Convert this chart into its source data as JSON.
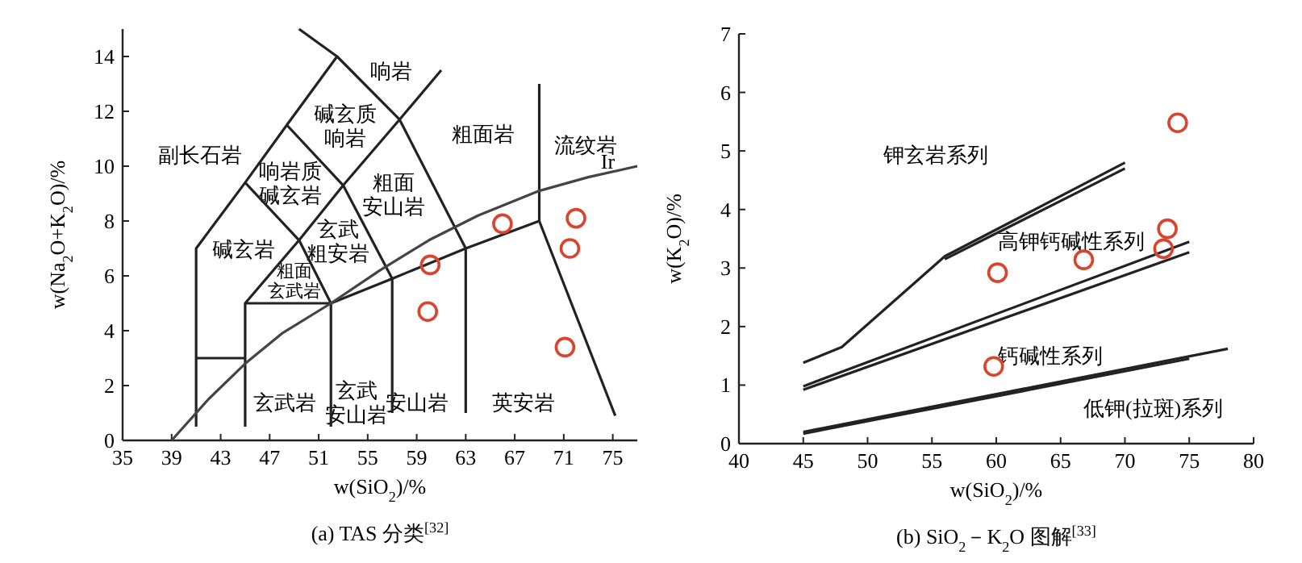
{
  "chart_data": [
    {
      "type": "scatter",
      "title": "(a) TAS 分类$^{[32]}$",
      "xlabel": "w(SiO$_{2}$)/%",
      "ylabel": "w(Na$_{2}$O+K$_{2}$O)/%",
      "xlim": [
        35,
        77
      ],
      "ylim": [
        0,
        15
      ],
      "xticks": [
        35,
        39,
        43,
        47,
        51,
        55,
        59,
        63,
        67,
        71,
        75
      ],
      "yticks": [
        0,
        2,
        4,
        6,
        8,
        10,
        12,
        14
      ],
      "grid": false,
      "series": [
        {
          "type": "line",
          "color": "#222222",
          "x": [
            41,
            41,
            45,
            48.4,
            52.5,
            49.4
          ],
          "values": [
            0.5,
            7,
            9.4,
            11.5,
            14,
            15
          ]
        },
        {
          "type": "line",
          "color": "#222222",
          "x": [
            41,
            45
          ],
          "values": [
            3,
            3
          ]
        },
        {
          "type": "line",
          "color": "#222222",
          "x": [
            45,
            45,
            52,
            52
          ],
          "values": [
            0.5,
            5,
            5,
            0.5
          ]
        },
        {
          "type": "line",
          "color": "#222222",
          "x": [
            45,
            49.4,
            53,
            57.6,
            61
          ],
          "values": [
            5,
            7.3,
            9.3,
            11.7,
            13.5
          ]
        },
        {
          "type": "line",
          "color": "#222222",
          "x": [
            45,
            49.4,
            52
          ],
          "values": [
            9.4,
            7.3,
            5
          ]
        },
        {
          "type": "line",
          "color": "#222222",
          "x": [
            48.4,
            53,
            57,
            57
          ],
          "values": [
            11.5,
            9.3,
            5.9,
            1
          ]
        },
        {
          "type": "line",
          "color": "#222222",
          "x": [
            52,
            57,
            63,
            69
          ],
          "values": [
            5,
            5.9,
            7,
            8
          ]
        },
        {
          "type": "line",
          "color": "#222222",
          "x": [
            52.5,
            57.6,
            63,
            63
          ],
          "values": [
            14,
            11.7,
            7,
            1
          ]
        },
        {
          "type": "line",
          "color": "#222222",
          "x": [
            69,
            69,
            75.2
          ],
          "values": [
            13,
            8,
            0.9
          ]
        },
        {
          "type": "line",
          "color": "#444444",
          "x": [
            39,
            42,
            45,
            48,
            52,
            56,
            60,
            64,
            69,
            73,
            77
          ],
          "values": [
            0,
            1.5,
            2.8,
            3.9,
            5,
            6.2,
            7.3,
            8.2,
            9.1,
            9.6,
            10
          ]
        },
        {
          "marker": "circle",
          "color": "#d9442e",
          "x": [
            60.1,
            59.9,
            66.0,
            72.0,
            71.5,
            71.1
          ],
          "values": [
            6.4,
            4.7,
            7.9,
            8.1,
            7.0,
            3.4
          ]
        }
      ],
      "annotations": [
        "副长石岩",
        "响岩",
        "碱玄质响岩",
        "粗面岩",
        "流纹岩",
        "响岩质碱玄岩",
        "粗面安山岩",
        "碱玄岩",
        "玄武粗安岩",
        "粗面玄武岩",
        "玄武岩",
        "玄武安山岩",
        "安山岩",
        "英安岩",
        "Ir"
      ]
    },
    {
      "type": "scatter",
      "title": "(b) SiO$_{2}$－K$_{2}$O 图解$^{[33]}$",
      "xlabel": "w(SiO$_{2}$)/%",
      "ylabel": "w(K$_{2}$O)/%",
      "xlim": [
        40,
        80
      ],
      "ylim": [
        0,
        7
      ],
      "xticks": [
        40,
        45,
        50,
        55,
        60,
        65,
        70,
        75,
        80
      ],
      "yticks": [
        0,
        1,
        2,
        3,
        4,
        5,
        6,
        7
      ],
      "grid": false,
      "series": [
        {
          "type": "line",
          "color": "#222222",
          "x": [
            45,
            48,
            56,
            70
          ],
          "values": [
            1.38,
            1.65,
            3.2,
            4.8
          ]
        },
        {
          "type": "line",
          "color": "#222222",
          "x": [
            56,
            70
          ],
          "values": [
            3.15,
            4.7
          ]
        },
        {
          "type": "line",
          "color": "#222222",
          "x": [
            45,
            75
          ],
          "values": [
            0.98,
            3.45
          ]
        },
        {
          "type": "line",
          "color": "#222222",
          "x": [
            45,
            75
          ],
          "values": [
            0.92,
            3.27
          ]
        },
        {
          "type": "line",
          "color": "#222222",
          "x": [
            45,
            78
          ],
          "values": [
            0.2,
            1.62
          ]
        },
        {
          "type": "line",
          "color": "#222222",
          "x": [
            45,
            75
          ],
          "values": [
            0.17,
            1.45
          ]
        },
        {
          "marker": "circle",
          "color": "#d9442e",
          "x": [
            60.1,
            66.8,
            73.0,
            73.3,
            74.1,
            59.8
          ],
          "values": [
            2.92,
            3.14,
            3.33,
            3.67,
            5.48,
            1.32
          ]
        }
      ],
      "annotations": [
        "钾玄岩系列",
        "高钾钙碱性系列",
        "钙碱性系列",
        "低钾(拉斑)系列"
      ]
    }
  ]
}
